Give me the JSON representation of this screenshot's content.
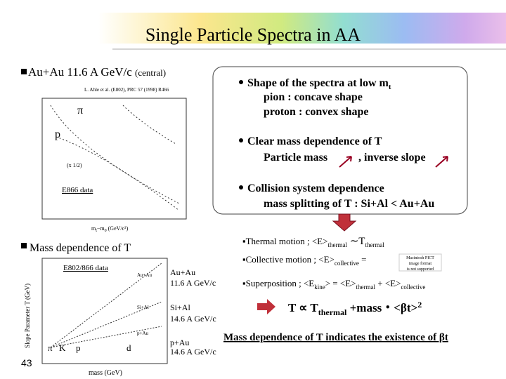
{
  "header": {
    "title": "Single Particle Spectra in AA"
  },
  "spectra": {
    "heading": "Au+Au 11.6 A GeV/c",
    "heading_note": "(central)",
    "citation": "L. Ahle et al. (E802), PRC 57 (1998) R466",
    "pion_label": "π",
    "proton_label": "p",
    "scale_note": "(x 1/2)",
    "data_label": "E866 data",
    "x_label": "m",
    "x_label_sub": "t",
    "x_label_rest": "−m",
    "x_label_sub2": "0",
    "x_label_unit": "(GeV/c²)"
  },
  "observations": [
    {
      "title": "Shape of the spectra at low m",
      "title_sub": "t",
      "lines": [
        "pion  : concave shape",
        "proton : convex  shape"
      ]
    },
    {
      "title": "Clear mass dependence of  T",
      "lines": [
        "Particle mass",
        ", inverse slope"
      ]
    },
    {
      "title": "Collision system dependence",
      "lines": [
        "mass splitting of T :  Si+Al < Au+Au"
      ]
    }
  ],
  "mass_dependence": {
    "heading": "Mass dependence of T",
    "data_label": "E802/866 data",
    "y_label": "Slope Parameter T (GeV)",
    "x_label": "mass (GeV)",
    "systems": [
      {
        "label": "Au+Au",
        "energy": "11.6 A GeV/c"
      },
      {
        "label": "Si+Al",
        "energy": "14.6 A GeV/c"
      },
      {
        "label": "p+Au",
        "energy": "14.6 A GeV/c"
      }
    ],
    "particles": [
      "π",
      "K",
      "p",
      "d"
    ]
  },
  "energy": {
    "thermal": [
      "Thermal motion   ; <E>",
      "thermal",
      " ∼T",
      "thermal"
    ],
    "collective": [
      "Collective motion ; <E>",
      "collective",
      " ="
    ],
    "pict_notice": [
      "Macintosh PICT",
      "image format",
      "is not supported"
    ],
    "superposition": [
      "Superposition ; <E",
      "kine",
      "> = <E>",
      "thermal",
      " + <E>",
      "collective"
    ],
    "formula": [
      "T ∝ T",
      "thermal",
      " +mass・<βt>",
      "2"
    ]
  },
  "conclusion": "Mass dependence of T indicates the existence of  βt",
  "page_number": "43"
}
